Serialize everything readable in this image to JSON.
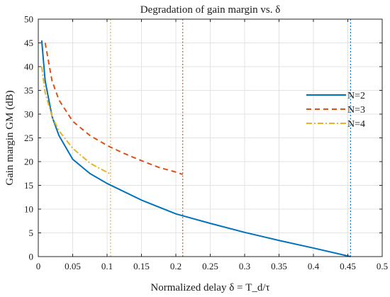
{
  "chart_data": {
    "type": "line",
    "title": "Degradation of gain margin vs. δ",
    "xlabel": "Normalized delay δ = T_d/τ",
    "ylabel": "Gain margin GM (dB)",
    "xlim": [
      0,
      0.5
    ],
    "ylim": [
      0,
      50
    ],
    "xticks": [
      0,
      0.05,
      0.1,
      0.15,
      0.2,
      0.25,
      0.3,
      0.35,
      0.4,
      0.45,
      0.5
    ],
    "yticks": [
      0,
      5,
      10,
      15,
      20,
      25,
      30,
      35,
      40,
      45,
      50
    ],
    "grid": true,
    "legend_position": "right",
    "series": [
      {
        "name": "N=2",
        "color": "#0072BD",
        "style": "solid",
        "x": [
          0.005,
          0.01,
          0.02,
          0.03,
          0.05,
          0.075,
          0.1,
          0.15,
          0.2,
          0.25,
          0.3,
          0.35,
          0.4,
          0.454
        ],
        "y": [
          45.5,
          37.0,
          29.5,
          25.5,
          20.5,
          17.5,
          15.4,
          11.9,
          9.0,
          7.0,
          5.1,
          3.4,
          1.8,
          0.0
        ]
      },
      {
        "name": "N=3",
        "color": "#D95319",
        "style": "dashed",
        "x": [
          0.01,
          0.02,
          0.03,
          0.05,
          0.075,
          0.1,
          0.125,
          0.15,
          0.175,
          0.2,
          0.21
        ],
        "y": [
          45.0,
          37.0,
          33.0,
          28.5,
          25.5,
          23.4,
          21.7,
          20.2,
          18.8,
          17.8,
          17.3
        ]
      },
      {
        "name": "N=4",
        "color": "#EDB120",
        "style": "dashdot",
        "x": [
          0.005,
          0.01,
          0.02,
          0.03,
          0.05,
          0.075,
          0.09,
          0.105
        ],
        "y": [
          40.0,
          34.5,
          29.5,
          26.5,
          22.8,
          19.7,
          18.5,
          17.4
        ]
      }
    ],
    "vlines": [
      {
        "x": 0.105,
        "color": "#EDB120",
        "style": "dotted"
      },
      {
        "x": 0.21,
        "color": "#D95319",
        "style": "dotted"
      },
      {
        "x": 0.454,
        "color": "#0072BD",
        "style": "dotted"
      }
    ]
  }
}
